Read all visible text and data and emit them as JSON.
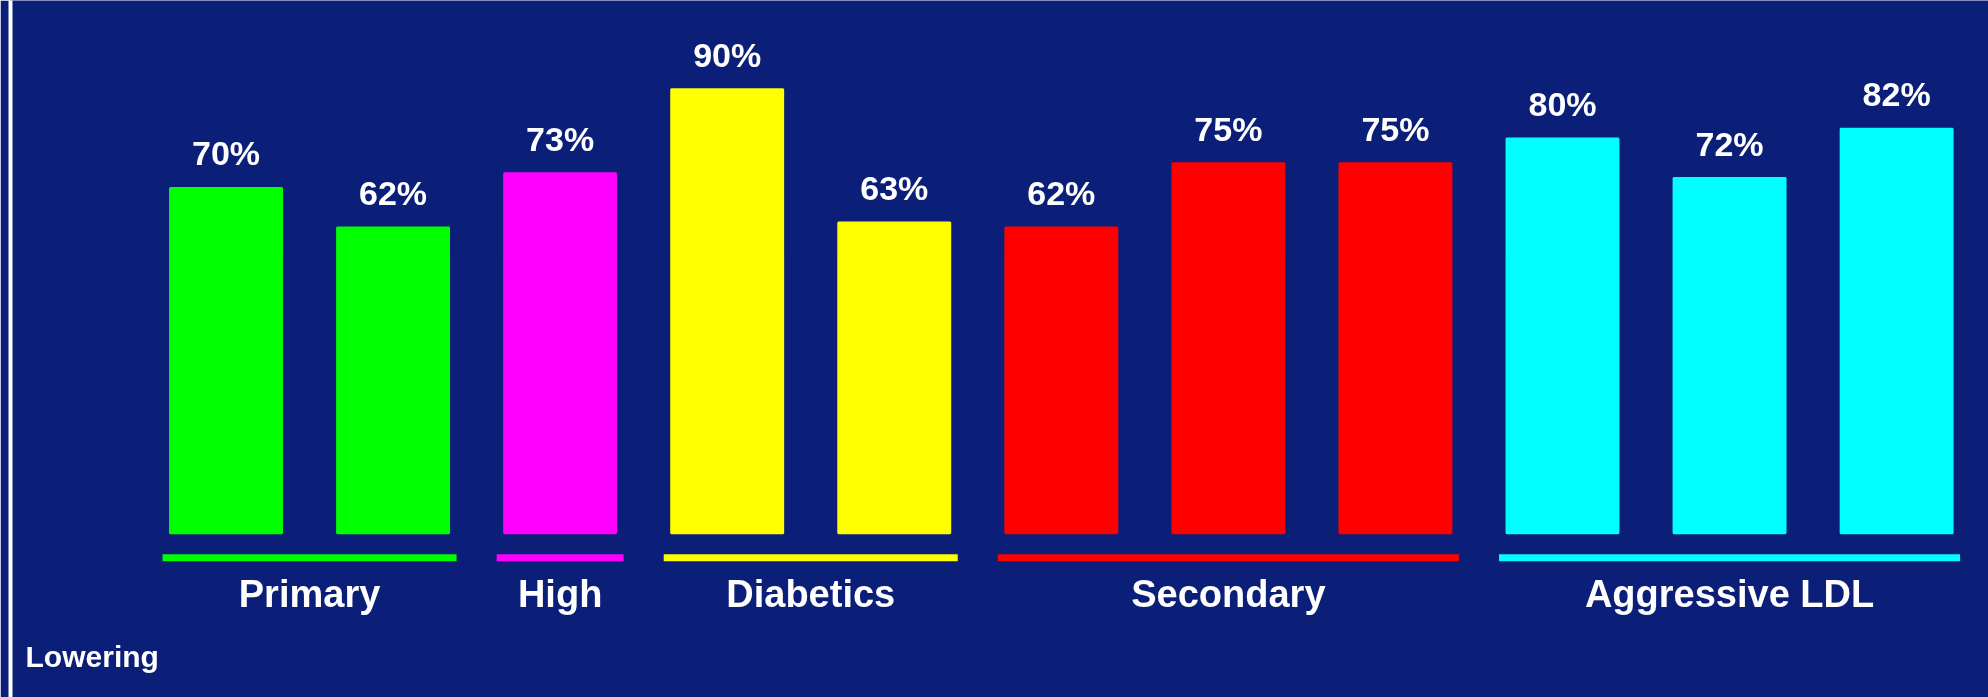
{
  "chart_data": {
    "type": "bar",
    "categories": [
      null,
      null,
      null,
      null,
      null,
      null,
      null,
      null,
      null,
      null,
      null
    ],
    "values": [
      70,
      62,
      73,
      90,
      63,
      62,
      75,
      75,
      80,
      72,
      82
    ],
    "colors": [
      "#00ff00",
      "#00ff00",
      "#ff00ff",
      "#ffff00",
      "#ffff00",
      "#ff0000",
      "#ff0000",
      "#ff0000",
      "#00ffff",
      "#00ffff",
      "#00ffff"
    ],
    "value_labels": [
      "70%",
      "62%",
      "73%",
      "90%",
      "63%",
      "62%",
      "75%",
      "75%",
      "80%",
      "72%",
      "82%"
    ],
    "annotations": [
      "Primary",
      "High",
      "Diabetics",
      "Secondary",
      "Aggressive LDL",
      "Lowering"
    ],
    "grid": false
  }
}
